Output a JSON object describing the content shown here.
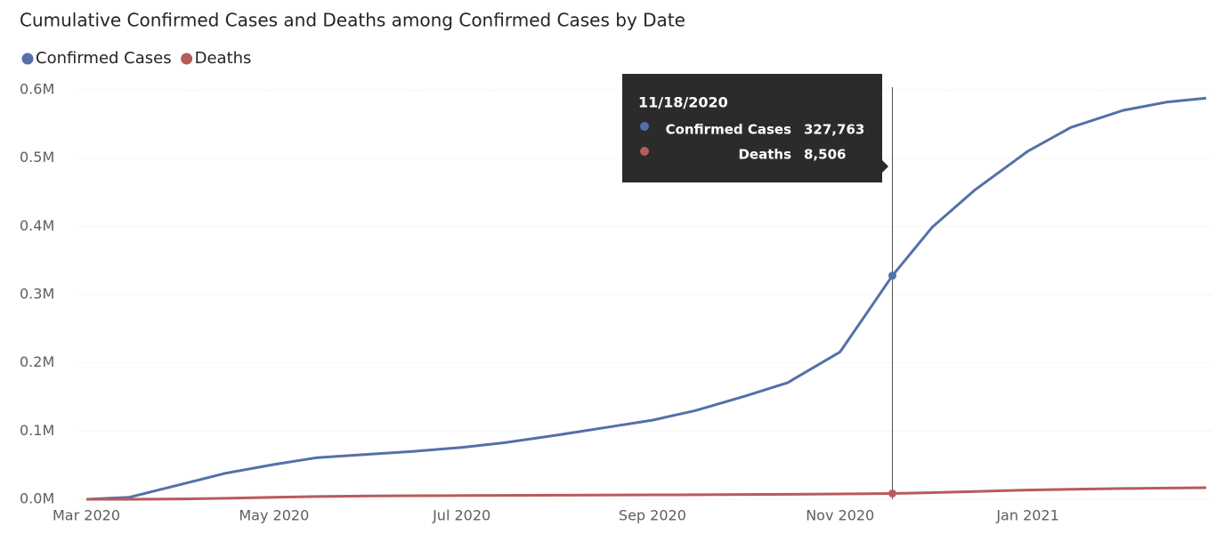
{
  "chart_data": {
    "type": "line",
    "title": "Cumulative Confirmed Cases and Deaths among Confirmed Cases by Date",
    "x": [
      "3/1/2020",
      "3/15/2020",
      "4/1/2020",
      "4/15/2020",
      "5/1/2020",
      "5/15/2020",
      "6/1/2020",
      "6/15/2020",
      "7/1/2020",
      "7/15/2020",
      "8/1/2020",
      "8/15/2020",
      "9/1/2020",
      "9/15/2020",
      "10/1/2020",
      "10/15/2020",
      "11/1/2020",
      "11/10/2020",
      "11/18/2020",
      "12/1/2020",
      "12/15/2020",
      "1/1/2021",
      "1/15/2021",
      "2/1/2021",
      "2/15/2021",
      "2/28/2021"
    ],
    "series": [
      {
        "name": "Confirmed Cases",
        "color": "#5470a8",
        "values": [
          0,
          3000,
          22000,
          38000,
          51000,
          61000,
          66000,
          70000,
          76000,
          83000,
          94000,
          104000,
          116000,
          130000,
          151000,
          171000,
          216000,
          275000,
          327763,
          399000,
          454000,
          510000,
          545000,
          570000,
          582000,
          588000
        ],
        "value_labels": [
          null,
          null,
          null,
          null,
          null,
          null,
          null,
          null,
          null,
          null,
          null,
          null,
          null,
          null,
          null,
          null,
          null,
          null,
          "327,763",
          null,
          null,
          null,
          null,
          null,
          null,
          null
        ]
      },
      {
        "name": "Deaths",
        "color": "#b85b5b",
        "values": [
          0,
          0,
          500,
          1500,
          3000,
          4000,
          4800,
          5200,
          5500,
          5800,
          6000,
          6200,
          6500,
          6700,
          7000,
          7300,
          7800,
          8100,
          8506,
          9800,
          11500,
          13500,
          14800,
          15800,
          16500,
          17000
        ],
        "value_labels": [
          null,
          null,
          null,
          null,
          null,
          null,
          null,
          null,
          null,
          null,
          null,
          null,
          null,
          null,
          null,
          null,
          null,
          null,
          "8,506",
          null,
          null,
          null,
          null,
          null,
          null,
          null
        ]
      }
    ],
    "xlim": [
      "3/1/2020",
      "2/28/2021"
    ],
    "xticks": [
      {
        "value": "3/1/2020",
        "label": "Mar 2020"
      },
      {
        "value": "5/1/2020",
        "label": "May 2020"
      },
      {
        "value": "7/1/2020",
        "label": "Jul 2020"
      },
      {
        "value": "9/1/2020",
        "label": "Sep 2020"
      },
      {
        "value": "11/1/2020",
        "label": "Nov 2020"
      },
      {
        "value": "1/1/2021",
        "label": "Jan 2021"
      }
    ],
    "ylim": [
      0,
      600000
    ],
    "yticks": [
      {
        "value": 0,
        "label": "0.0M"
      },
      {
        "value": 100000,
        "label": "0.1M"
      },
      {
        "value": 200000,
        "label": "0.2M"
      },
      {
        "value": 300000,
        "label": "0.3M"
      },
      {
        "value": 400000,
        "label": "0.4M"
      },
      {
        "value": 500000,
        "label": "0.5M"
      },
      {
        "value": 600000,
        "label": "0.6M"
      }
    ],
    "grid": true
  }
}
